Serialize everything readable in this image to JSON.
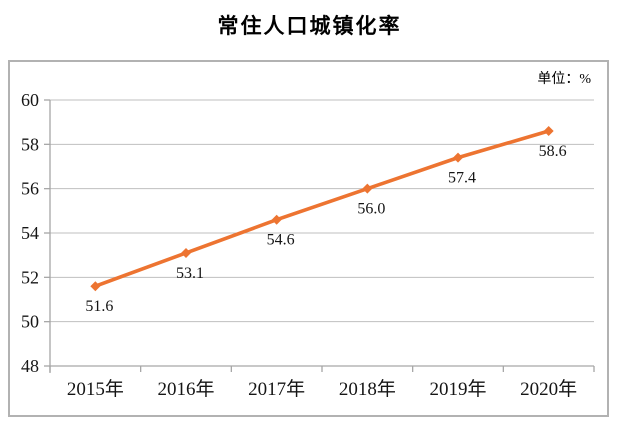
{
  "page": {
    "title": "常住人口城镇化率",
    "unit_label": "单位：%"
  },
  "chart_data": {
    "type": "line",
    "title": "常住人口城镇化率",
    "unit": "单位：%",
    "categories": [
      "2015年",
      "2016年",
      "2017年",
      "2018年",
      "2019年",
      "2020年"
    ],
    "series": [
      {
        "name": "常住人口城镇化率",
        "values": [
          51.6,
          53.1,
          54.6,
          56.0,
          57.4,
          58.6
        ],
        "data_labels": [
          "51.6",
          "53.1",
          "54.6",
          "56.0",
          "57.4",
          "58.6"
        ]
      }
    ],
    "xlabel": "",
    "ylabel": "",
    "ylim": [
      48,
      60
    ],
    "y_ticks": [
      48,
      50,
      52,
      54,
      56,
      58,
      60
    ],
    "grid": true,
    "legend": "none",
    "marker": "diamond",
    "line_color": "#ED7431",
    "grid_color": "#bfbfbf",
    "axis_color": "#a6a6a6",
    "label_color": "#151515"
  }
}
